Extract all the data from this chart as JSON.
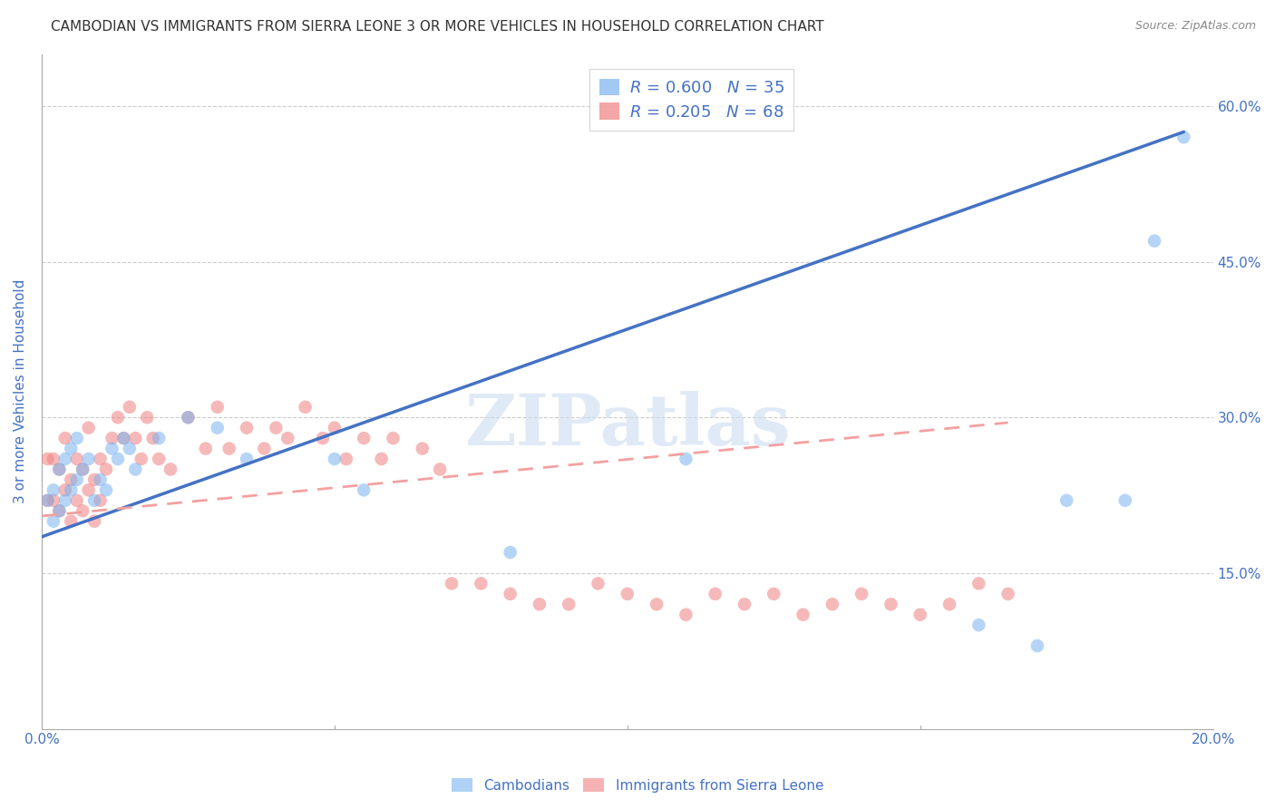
{
  "title": "CAMBODIAN VS IMMIGRANTS FROM SIERRA LEONE 3 OR MORE VEHICLES IN HOUSEHOLD CORRELATION CHART",
  "source": "Source: ZipAtlas.com",
  "ylabel": "3 or more Vehicles in Household",
  "watermark": "ZIPatlas",
  "bottom_legend": [
    "Cambodians",
    "Immigrants from Sierra Leone"
  ],
  "xlim": [
    0.0,
    0.2
  ],
  "ylim": [
    0.0,
    0.65
  ],
  "right_yticks": [
    0.15,
    0.3,
    0.45,
    0.6
  ],
  "right_yticklabels": [
    "15.0%",
    "30.0%",
    "45.0%",
    "60.0%"
  ],
  "xticks": [
    0.0,
    0.05,
    0.1,
    0.15,
    0.2
  ],
  "xticklabels": [
    "0.0%",
    "",
    "",
    "",
    "20.0%"
  ],
  "grid_color": "#cccccc",
  "blue_color": "#7ab3ef",
  "pink_color": "#f08080",
  "blue_line_color": "#4472c4",
  "pink_line_color": "#f4a0a0",
  "blue_scatter_x": [
    0.001,
    0.002,
    0.002,
    0.003,
    0.003,
    0.004,
    0.004,
    0.005,
    0.005,
    0.006,
    0.006,
    0.007,
    0.008,
    0.009,
    0.01,
    0.011,
    0.012,
    0.013,
    0.014,
    0.015,
    0.016,
    0.02,
    0.025,
    0.03,
    0.035,
    0.05,
    0.055,
    0.08,
    0.11,
    0.16,
    0.17,
    0.175,
    0.185,
    0.19,
    0.195
  ],
  "blue_scatter_y": [
    0.22,
    0.2,
    0.23,
    0.21,
    0.25,
    0.22,
    0.26,
    0.23,
    0.27,
    0.24,
    0.28,
    0.25,
    0.26,
    0.22,
    0.24,
    0.23,
    0.27,
    0.26,
    0.28,
    0.27,
    0.25,
    0.28,
    0.3,
    0.29,
    0.26,
    0.26,
    0.23,
    0.17,
    0.26,
    0.1,
    0.08,
    0.22,
    0.22,
    0.47,
    0.57
  ],
  "pink_scatter_x": [
    0.001,
    0.001,
    0.002,
    0.002,
    0.003,
    0.003,
    0.004,
    0.004,
    0.005,
    0.005,
    0.006,
    0.006,
    0.007,
    0.007,
    0.008,
    0.008,
    0.009,
    0.009,
    0.01,
    0.01,
    0.011,
    0.012,
    0.013,
    0.014,
    0.015,
    0.016,
    0.017,
    0.018,
    0.019,
    0.02,
    0.022,
    0.025,
    0.028,
    0.03,
    0.032,
    0.035,
    0.038,
    0.04,
    0.042,
    0.045,
    0.048,
    0.05,
    0.052,
    0.055,
    0.058,
    0.06,
    0.065,
    0.068,
    0.07,
    0.075,
    0.08,
    0.085,
    0.09,
    0.095,
    0.1,
    0.105,
    0.11,
    0.115,
    0.12,
    0.125,
    0.13,
    0.135,
    0.14,
    0.145,
    0.15,
    0.155,
    0.16,
    0.165
  ],
  "pink_scatter_y": [
    0.22,
    0.26,
    0.22,
    0.26,
    0.21,
    0.25,
    0.23,
    0.28,
    0.2,
    0.24,
    0.22,
    0.26,
    0.21,
    0.25,
    0.23,
    0.29,
    0.2,
    0.24,
    0.22,
    0.26,
    0.25,
    0.28,
    0.3,
    0.28,
    0.31,
    0.28,
    0.26,
    0.3,
    0.28,
    0.26,
    0.25,
    0.3,
    0.27,
    0.31,
    0.27,
    0.29,
    0.27,
    0.29,
    0.28,
    0.31,
    0.28,
    0.29,
    0.26,
    0.28,
    0.26,
    0.28,
    0.27,
    0.25,
    0.14,
    0.14,
    0.13,
    0.12,
    0.12,
    0.14,
    0.13,
    0.12,
    0.11,
    0.13,
    0.12,
    0.13,
    0.11,
    0.12,
    0.13,
    0.12,
    0.11,
    0.12,
    0.14,
    0.13
  ],
  "blue_trendline_x": [
    0.0,
    0.195
  ],
  "blue_trendline_y": [
    0.185,
    0.575
  ],
  "pink_trendline_x": [
    0.0,
    0.165
  ],
  "pink_trendline_y": [
    0.205,
    0.295
  ],
  "title_fontsize": 11,
  "axis_label_color": "#4472c4",
  "tick_label_color": "#4472c4",
  "background_color": "#ffffff"
}
